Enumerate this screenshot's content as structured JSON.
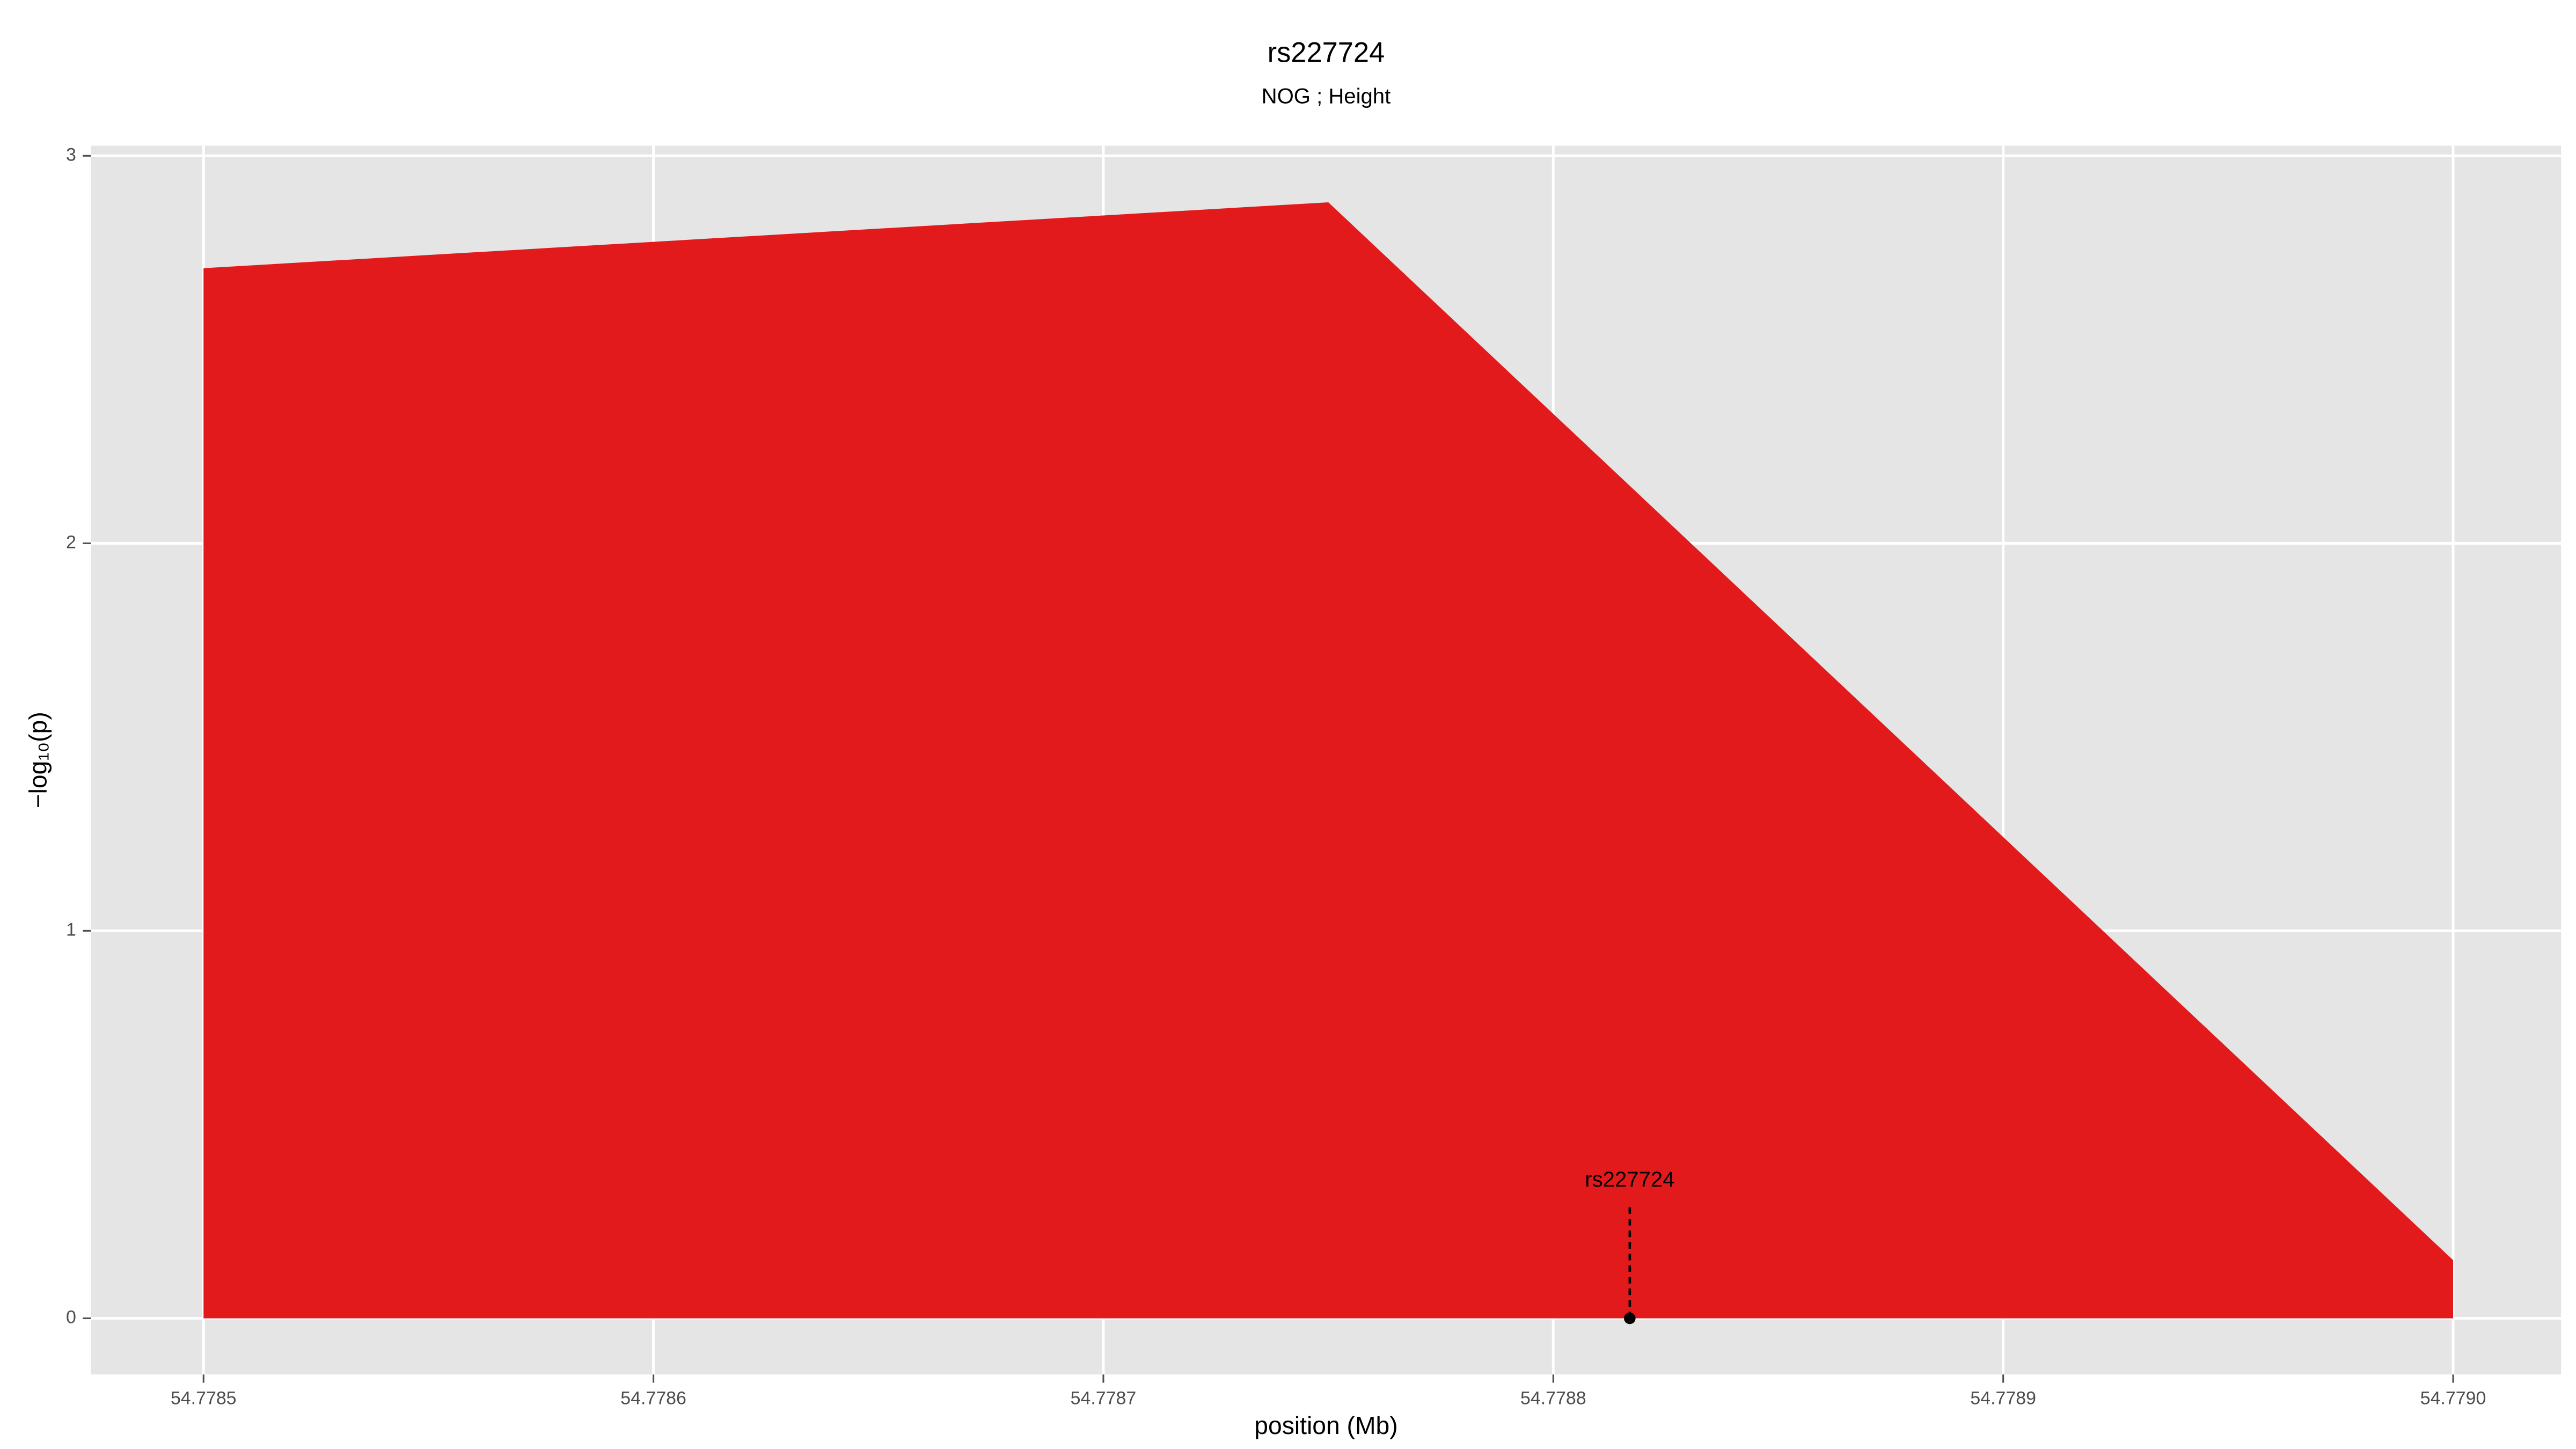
{
  "chart_data": {
    "type": "area",
    "title": "rs227724",
    "subtitle": "NOG ; Height",
    "xlabel": "position (Mb)",
    "ylabel": "−log₁₀(p)",
    "x": [
      54.7785,
      54.77875,
      54.779
    ],
    "series": [
      {
        "color": "#e31a1c",
        "values": [
          2.71,
          2.88,
          0.15
        ]
      }
    ],
    "xlim": [
      54.778475,
      54.779024
    ],
    "ylim": [
      -0.145,
      3.026
    ],
    "xticks": [
      54.7785,
      54.7786,
      54.7787,
      54.7788,
      54.7789,
      {
        "value": 54.779,
        "label": "54.7790"
      }
    ],
    "yticks": [
      0,
      1,
      2,
      3
    ],
    "grid": true,
    "annotation": {
      "text": "rs227724",
      "x": 54.778817,
      "y": 0
    }
  }
}
